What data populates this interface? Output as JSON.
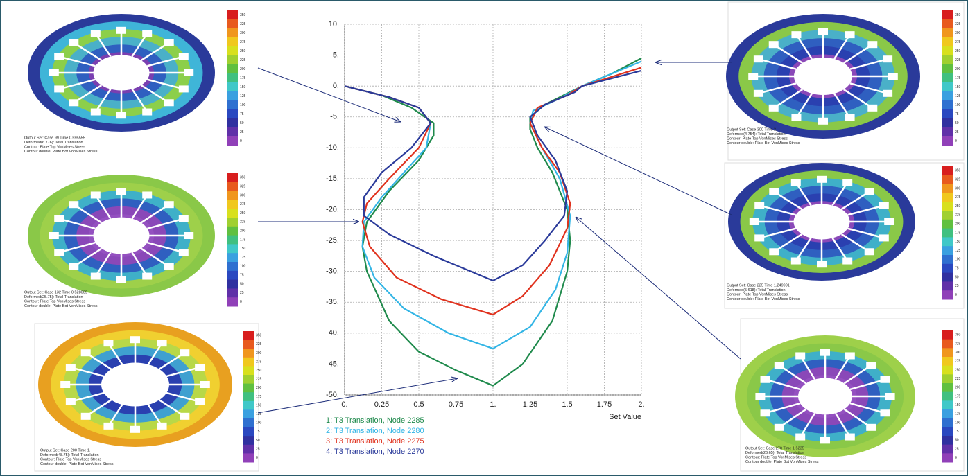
{
  "chart_data": {
    "type": "line",
    "x_label": "Set Value",
    "xlim": [
      0,
      2
    ],
    "ylim": [
      -50,
      10
    ],
    "xticks": [
      {
        "value": 0,
        "label": "0."
      },
      0.25,
      0.5,
      0.75,
      {
        "value": 1,
        "label": "1."
      },
      1.25,
      1.5,
      1.75,
      {
        "value": 2,
        "label": "2."
      }
    ],
    "yticks": [
      {
        "value": 10,
        "label": "10."
      },
      {
        "value": 5,
        "label": "5."
      },
      {
        "value": 0,
        "label": "0."
      },
      {
        "value": -5,
        "label": "-5."
      },
      {
        "value": -10,
        "label": "-10."
      },
      {
        "value": -15,
        "label": "-15."
      },
      {
        "value": -20,
        "label": "-20."
      },
      {
        "value": -25,
        "label": "-25."
      },
      {
        "value": -30,
        "label": "-30."
      },
      {
        "value": -35,
        "label": "-35."
      },
      {
        "value": -40,
        "label": "-40."
      },
      {
        "value": -45,
        "label": "-45."
      },
      {
        "value": -50,
        "label": "-50."
      }
    ],
    "grid": true,
    "series": [
      {
        "name": "1: T3 Translation, Node 2285",
        "color": "#1f8a4c",
        "x": [
          0,
          0.25,
          0.45,
          0.6,
          0.6,
          0.5,
          0.3,
          0.15,
          0.12,
          0.15,
          0.3,
          0.5,
          0.75,
          1,
          1.2,
          1.4,
          1.5,
          1.52,
          1.5,
          1.4,
          1.3,
          1.25,
          1.25,
          1.35,
          1.6,
          1.8,
          2
        ],
        "values": [
          0,
          -1.5,
          -3.5,
          -6,
          -8,
          -12,
          -17,
          -22,
          -26,
          -30,
          -38,
          -43,
          -46,
          -48.5,
          -45,
          -38,
          -30,
          -25,
          -20,
          -14,
          -10,
          -7,
          -5,
          -3,
          0,
          2,
          4.5
        ]
      },
      {
        "name": "2: T3 Translation, Node 2280",
        "color": "#33b5e5",
        "x": [
          0,
          0.3,
          0.5,
          0.58,
          0.55,
          0.4,
          0.25,
          0.13,
          0.12,
          0.2,
          0.4,
          0.7,
          1,
          1.25,
          1.42,
          1.5,
          1.52,
          1.45,
          1.33,
          1.25,
          1.27,
          1.45,
          1.6,
          2
        ],
        "values": [
          0,
          -1.8,
          -3.5,
          -6,
          -10,
          -14,
          -18,
          -22,
          -26,
          -31,
          -36,
          -40,
          -42.5,
          -39,
          -33,
          -27,
          -21,
          -15,
          -10,
          -6,
          -4,
          -2,
          0,
          4
        ]
      },
      {
        "name": "3: T3 Translation, Node 2275",
        "color": "#e0321e",
        "x": [
          0,
          0.3,
          0.5,
          0.58,
          0.5,
          0.3,
          0.15,
          0.12,
          0.17,
          0.35,
          0.65,
          1,
          1.2,
          1.38,
          1.5,
          1.52,
          1.45,
          1.33,
          1.25,
          1.3,
          1.5,
          1.6,
          2
        ],
        "values": [
          0,
          -1.8,
          -3.5,
          -6,
          -10,
          -15,
          -19,
          -22,
          -26,
          -31,
          -34.5,
          -37,
          -34,
          -29,
          -23,
          -19,
          -14,
          -10,
          -6,
          -3.5,
          -1.5,
          0,
          3
        ]
      },
      {
        "name": "4: T3 Translation, Node 2270",
        "color": "#2a3a9a",
        "x": [
          0,
          0.3,
          0.5,
          0.58,
          0.45,
          0.25,
          0.13,
          0.13,
          0.3,
          0.6,
          1,
          1.2,
          1.35,
          1.48,
          1.5,
          1.42,
          1.3,
          1.25,
          1.35,
          1.55,
          1.6,
          2
        ],
        "values": [
          0,
          -1.8,
          -3.5,
          -6,
          -10,
          -14,
          -18,
          -21,
          -24,
          -27.5,
          -31.5,
          -29,
          -25,
          -21,
          -17,
          -12,
          -8,
          -5,
          -3,
          -1,
          0,
          2.5
        ]
      }
    ]
  },
  "colorbar_ticks": [
    "350",
    "325",
    "300",
    "275",
    "250",
    "225",
    "200",
    "175",
    "150",
    "125",
    "100",
    "75",
    "50",
    "25",
    "0"
  ],
  "panels": [
    {
      "caption": [
        "Output Set: Case 99 Time 0.595555",
        "Deformed(6.776): Total Translation",
        "Contour: Plate Top VonMises Stress",
        "Contour double: Plate Bot VonMises Stress"
      ]
    },
    {
      "caption": [
        "Output Set: Case 132 Time 0.528009",
        "Deformed(25.75): Total Translation",
        "Contour: Plate Top VonMises Stress",
        "Contour double: Plate Bot VonMises Stress"
      ]
    },
    {
      "caption": [
        "Output Set: Case 200 Time 1.",
        "Deformed(48.75): Total Translation",
        "Contour: Plate Top VonMises Stress",
        "Contour double: Plate Bot VonMises Stress"
      ]
    },
    {
      "caption": [
        "Output Set: Case 300 Time 2.",
        "Deformed(4.754): Total Translation",
        "Contour: Plate Top VonMises Stress",
        "Contour double: Plate Bot VonMises Stress"
      ]
    },
    {
      "caption": [
        "Output Set: Case 225 Time 1.249991",
        "Deformed(5.618): Total Translation",
        "Contour: Plate Top VonMises Stress",
        "Contour double: Plate Bot VonMises Stress"
      ]
    },
    {
      "caption": [
        "Output Set: Case 270 Time 1.5235",
        "Deformed(26.65): Total Translation",
        "Contour: Plate Top VonMises Stress",
        "Contour double: Plate Bot VonMises Stress"
      ]
    }
  ]
}
